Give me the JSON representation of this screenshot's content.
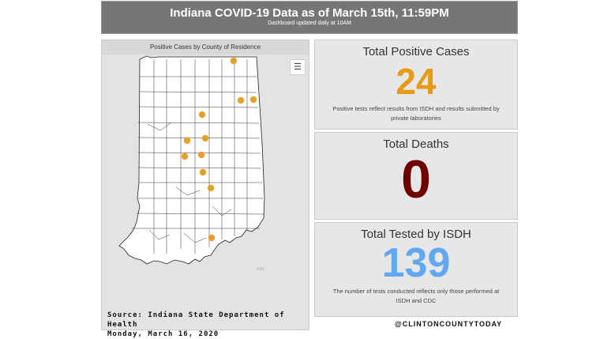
{
  "header": {
    "title": "Indiana COVID-19 Data as of March 15th, 11:59PM",
    "subtitle": "Dashboard updated daily at 10AM"
  },
  "map": {
    "title": "Positive Cases by County of Residence",
    "legend_icon": "list-icon",
    "attribution": "esri",
    "dot_color": "#e5a12a",
    "source_line1": "Source: Indiana State Department of Health",
    "source_line2": "Monday, March 16, 2020"
  },
  "cards": {
    "positive": {
      "title": "Total Positive Cases",
      "value": "24",
      "note": "Positive tests reflect results from ISDH and results submitted by private laboratories",
      "color": "#e59a18"
    },
    "deaths": {
      "title": "Total Deaths",
      "value": "0",
      "color": "#6e0000"
    },
    "tested": {
      "title": "Total Tested by ISDH",
      "value": "139",
      "note": "The number of tests conducted reflects only those performed at ISDH and CDC",
      "color": "#62a8f0"
    }
  },
  "handle": "@CLINTONCOUNTYTODAY"
}
